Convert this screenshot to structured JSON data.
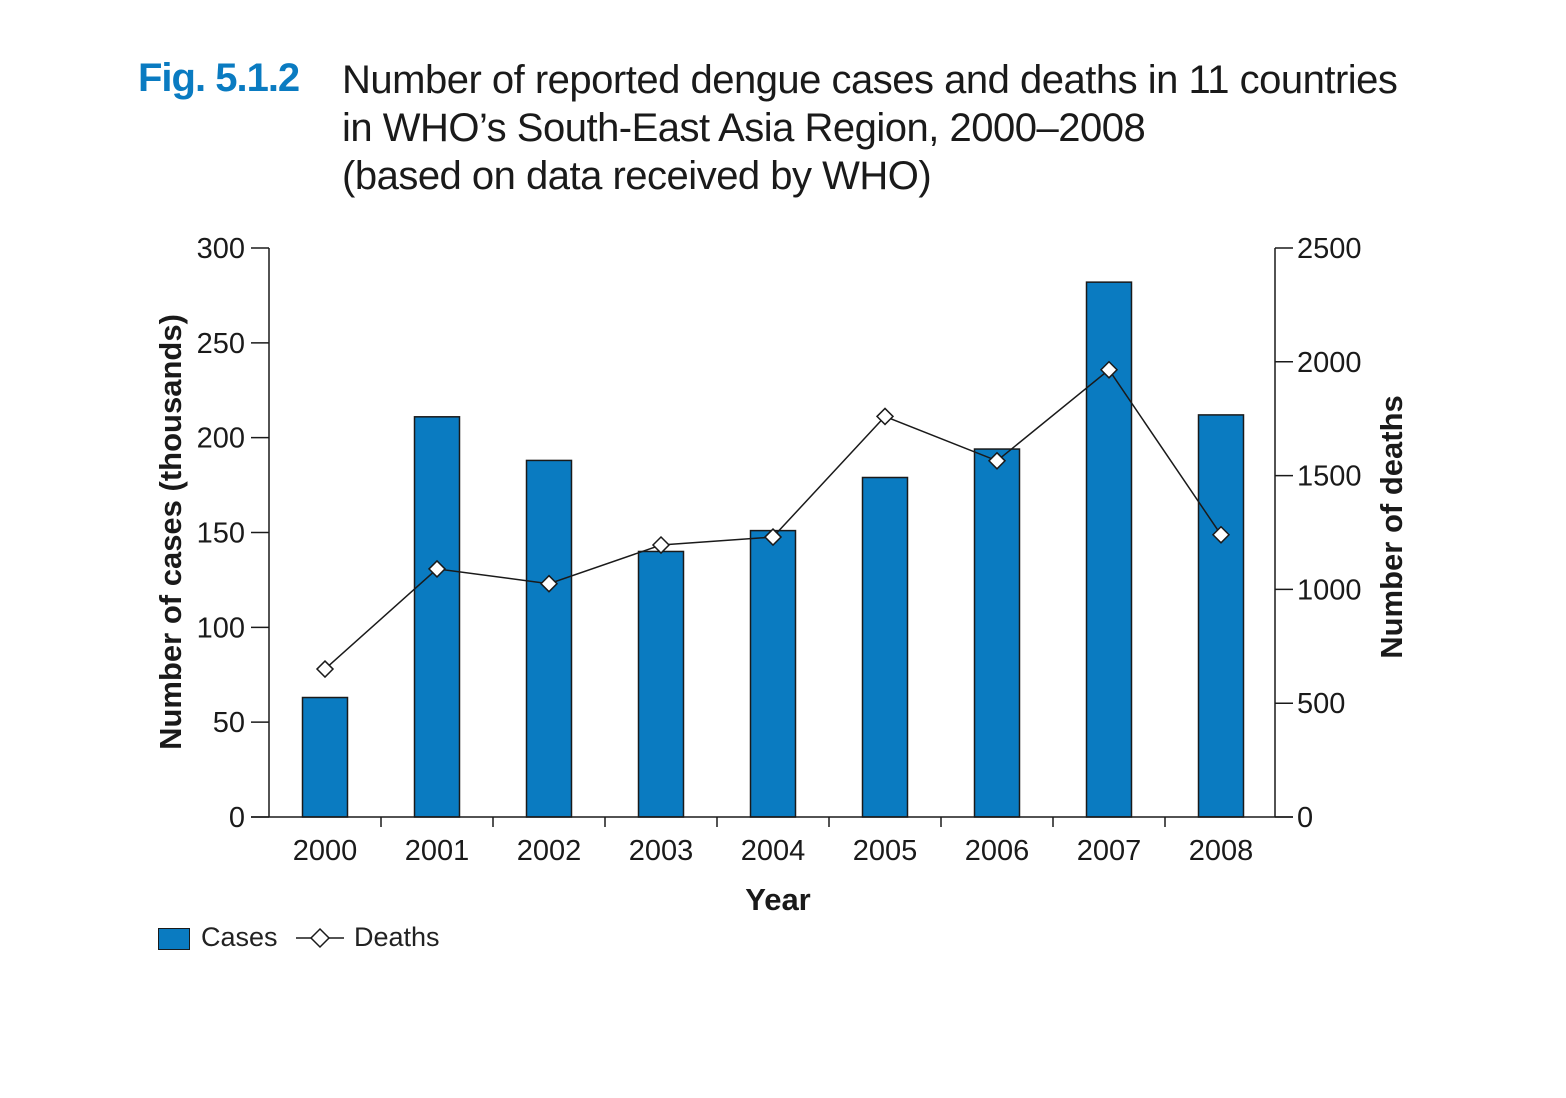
{
  "figure": {
    "label": "Fig. 5.1.2",
    "title_lines": [
      "Number of reported dengue cases and deaths in 11 countries",
      "in WHO’s South-East Asia Region, 2000–2008",
      "(based on data received by WHO)"
    ]
  },
  "colors": {
    "bar": "#0a7bc1",
    "line": "#1a1a1a",
    "marker_fill": "#ffffff"
  },
  "chart_data": {
    "type": "bar",
    "categories": [
      "2000",
      "2001",
      "2002",
      "2003",
      "2004",
      "2005",
      "2006",
      "2007",
      "2008"
    ],
    "xlabel": "Year",
    "ylabel": "Number of cases (thousands)",
    "y2label": "Number of deaths",
    "ylim": [
      0,
      300
    ],
    "y2lim": [
      0,
      2500
    ],
    "yticks": [
      0,
      50,
      100,
      150,
      200,
      250,
      300
    ],
    "y2ticks": [
      0,
      500,
      1000,
      1500,
      2000,
      2500
    ],
    "grid": false,
    "legend_position": "bottom-left",
    "series": [
      {
        "name": "Cases",
        "type": "bar",
        "axis": "left",
        "values": [
          63,
          211,
          188,
          140,
          151,
          179,
          194,
          282,
          212
        ]
      },
      {
        "name": "Deaths",
        "type": "line",
        "axis": "right",
        "marker": "diamond",
        "values": [
          650,
          1090,
          1025,
          1195,
          1230,
          1760,
          1565,
          1965,
          1240
        ]
      }
    ]
  }
}
